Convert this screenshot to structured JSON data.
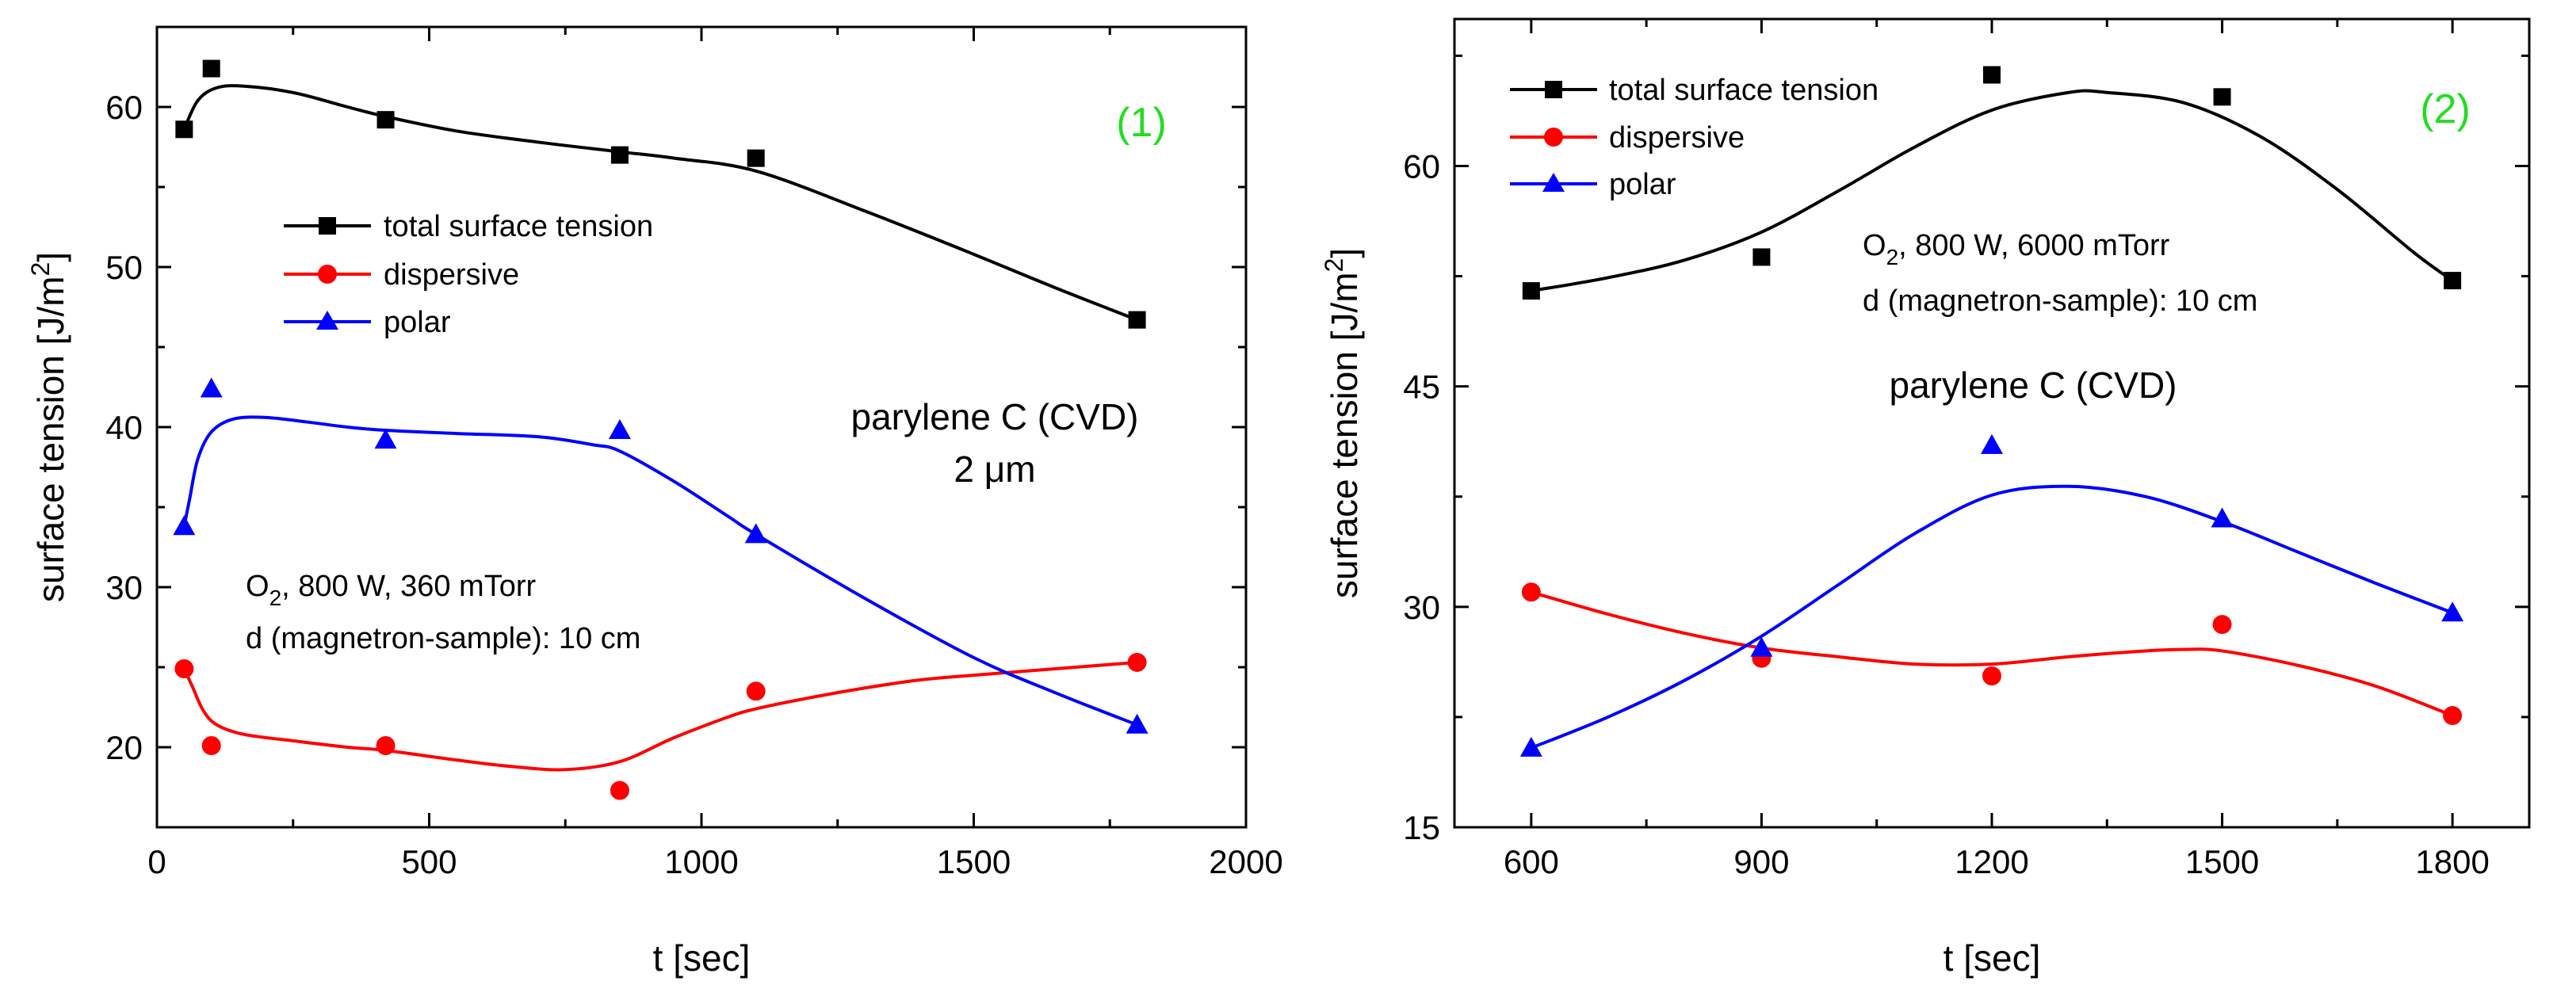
{
  "chart_data": [
    {
      "type": "line",
      "panel_label": "(1)",
      "panel_label_color": "#22dd22",
      "xlabel": "t [sec]",
      "ylabel": "surface tension [J/m",
      "ylabel_sup": "2",
      "ylabel_end": "]",
      "xlim": [
        0,
        2000
      ],
      "ylim": [
        15,
        65
      ],
      "xticks": [
        0,
        500,
        1000,
        1500,
        2000
      ],
      "yticks": [
        20,
        30,
        40,
        50,
        60
      ],
      "x": [
        50,
        100,
        420,
        850,
        1100,
        1800
      ],
      "series": [
        {
          "name": "total surface tension",
          "marker": "square",
          "color": "#000000",
          "values": [
            58.6,
            62.4,
            59.2,
            57.0,
            56.8,
            46.7
          ],
          "fit_curve": [
            [
              50,
              58.6
            ],
            [
              75,
              60.4
            ],
            [
              110,
              61.2
            ],
            [
              160,
              61.3
            ],
            [
              250,
              60.9
            ],
            [
              350,
              60.0
            ],
            [
              420,
              59.4
            ],
            [
              550,
              58.5
            ],
            [
              700,
              57.8
            ],
            [
              850,
              57.2
            ],
            [
              950,
              56.8
            ],
            [
              1100,
              56.0
            ],
            [
              1300,
              53.5
            ],
            [
              1500,
              50.8
            ],
            [
              1650,
              48.7
            ],
            [
              1800,
              46.7
            ]
          ]
        },
        {
          "name": "dispersive",
          "marker": "circle",
          "color": "#ff0000",
          "values": [
            24.9,
            20.1,
            20.1,
            17.3,
            23.5,
            25.3
          ],
          "fit_curve": [
            [
              50,
              24.9
            ],
            [
              65,
              23.8
            ],
            [
              85,
              22.3
            ],
            [
              110,
              21.4
            ],
            [
              160,
              20.8
            ],
            [
              250,
              20.4
            ],
            [
              350,
              20.0
            ],
            [
              420,
              19.8
            ],
            [
              550,
              19.2
            ],
            [
              650,
              18.8
            ],
            [
              750,
              18.6
            ],
            [
              850,
              19.1
            ],
            [
              950,
              20.6
            ],
            [
              1050,
              21.9
            ],
            [
              1100,
              22.4
            ],
            [
              1200,
              23.1
            ],
            [
              1300,
              23.7
            ],
            [
              1400,
              24.2
            ],
            [
              1500,
              24.5
            ],
            [
              1650,
              24.9
            ],
            [
              1800,
              25.3
            ]
          ]
        },
        {
          "name": "polar",
          "marker": "triangle",
          "color": "#0000ff",
          "values": [
            33.8,
            42.4,
            39.2,
            39.8,
            33.3,
            21.4
          ],
          "fit_curve": [
            [
              50,
              33.8
            ],
            [
              60,
              35.5
            ],
            [
              75,
              38.0
            ],
            [
              100,
              39.7
            ],
            [
              140,
              40.5
            ],
            [
              200,
              40.6
            ],
            [
              280,
              40.3
            ],
            [
              350,
              40.0
            ],
            [
              420,
              39.8
            ],
            [
              550,
              39.6
            ],
            [
              700,
              39.4
            ],
            [
              800,
              38.9
            ],
            [
              850,
              38.5
            ],
            [
              950,
              36.6
            ],
            [
              1050,
              34.4
            ],
            [
              1100,
              33.3
            ],
            [
              1300,
              29.3
            ],
            [
              1500,
              25.6
            ],
            [
              1650,
              23.4
            ],
            [
              1800,
              21.4
            ]
          ]
        }
      ],
      "annotations": {
        "material_line1": "parylene C (CVD)",
        "material_line2": "2 μm",
        "cond_o": "O",
        "cond_sub": "2",
        "cond_rest": ", 800 W, 360 mTorr",
        "distance": "d (magnetron-sample): 10 cm"
      }
    },
    {
      "type": "line",
      "panel_label": "(2)",
      "panel_label_color": "#22dd22",
      "xlabel": "t [sec]",
      "ylabel": "surface tension [J/m",
      "ylabel_sup": "2",
      "ylabel_end": "]",
      "xlim": [
        500,
        1900
      ],
      "ylim": [
        15,
        70
      ],
      "xticks": [
        600,
        900,
        1200,
        1500,
        1800
      ],
      "yticks": [
        15,
        30,
        45,
        60
      ],
      "x": [
        600,
        900,
        1200,
        1500,
        1800
      ],
      "series": [
        {
          "name": "total surface tension",
          "marker": "square",
          "color": "#000000",
          "values": [
            51.5,
            53.8,
            66.2,
            64.7,
            52.2
          ],
          "fit_curve": [
            [
              600,
              51.5
            ],
            [
              700,
              52.4
            ],
            [
              800,
              53.6
            ],
            [
              900,
              55.5
            ],
            [
              1000,
              58.3
            ],
            [
              1100,
              61.3
            ],
            [
              1200,
              63.8
            ],
            [
              1300,
              65.0
            ],
            [
              1350,
              65.0
            ],
            [
              1450,
              64.3
            ],
            [
              1550,
              62.0
            ],
            [
              1650,
              58.4
            ],
            [
              1750,
              54.1
            ],
            [
              1800,
              52.2
            ]
          ]
        },
        {
          "name": "dispersive",
          "marker": "circle",
          "color": "#ff0000",
          "values": [
            31.0,
            26.5,
            25.3,
            28.8,
            22.6
          ],
          "fit_curve": [
            [
              600,
              31.0
            ],
            [
              700,
              29.5
            ],
            [
              800,
              28.2
            ],
            [
              900,
              27.2
            ],
            [
              1000,
              26.6
            ],
            [
              1100,
              26.1
            ],
            [
              1200,
              26.1
            ],
            [
              1300,
              26.6
            ],
            [
              1400,
              27.0
            ],
            [
              1450,
              27.1
            ],
            [
              1500,
              27.0
            ],
            [
              1600,
              26.0
            ],
            [
              1700,
              24.6
            ],
            [
              1800,
              22.6
            ]
          ]
        },
        {
          "name": "polar",
          "marker": "triangle",
          "color": "#0000ff",
          "values": [
            20.4,
            27.2,
            41.0,
            36.0,
            29.6
          ],
          "fit_curve": [
            [
              600,
              20.4
            ],
            [
              700,
              22.5
            ],
            [
              800,
              25.0
            ],
            [
              900,
              28.0
            ],
            [
              1000,
              31.5
            ],
            [
              1100,
              35.0
            ],
            [
              1200,
              37.6
            ],
            [
              1300,
              38.2
            ],
            [
              1400,
              37.5
            ],
            [
              1500,
              35.8
            ],
            [
              1600,
              33.7
            ],
            [
              1700,
              31.6
            ],
            [
              1800,
              29.6
            ]
          ]
        }
      ],
      "annotations": {
        "material_line1": "parylene C (CVD)",
        "cond_o": "O",
        "cond_sub": "2",
        "cond_rest": ", 800 W, 6000 mTorr",
        "distance": "d (magnetron-sample): 10 cm"
      }
    }
  ]
}
